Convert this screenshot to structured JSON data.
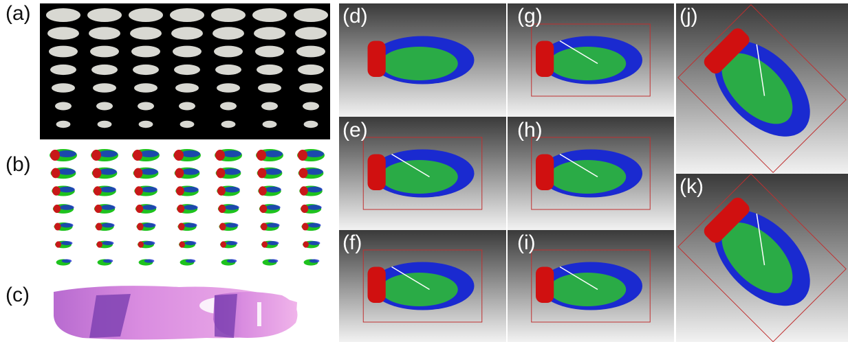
{
  "panels": [
    {
      "label": "(a)"
    },
    {
      "label": "(b)"
    },
    {
      "label": "(c)"
    },
    {
      "label": "(d)"
    },
    {
      "label": "(e)"
    },
    {
      "label": "(f)"
    },
    {
      "label": "(g)"
    },
    {
      "label": "(h)"
    },
    {
      "label": "(i)"
    },
    {
      "label": "(j)"
    },
    {
      "label": "(k)"
    }
  ]
}
